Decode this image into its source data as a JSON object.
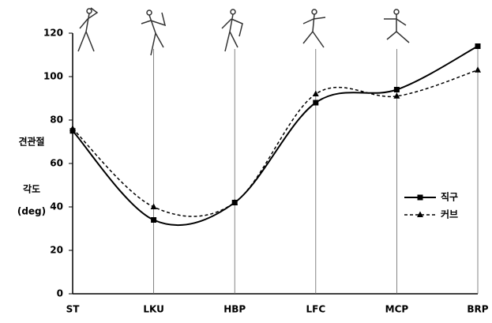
{
  "chart_data": {
    "type": "line",
    "y_label": [
      "견관절",
      "각도",
      "(deg)"
    ],
    "categories": [
      "ST",
      "LKU",
      "HBP",
      "LFC",
      "MCP",
      "BRP"
    ],
    "series": [
      {
        "name": "직구",
        "color": "#000000",
        "dash": "solid",
        "marker": "square",
        "values": [
          75,
          34,
          42,
          88,
          94,
          114
        ]
      },
      {
        "name": "커브",
        "color": "#000000",
        "dash": "dashed",
        "marker": "triangle",
        "values": [
          76,
          40,
          42,
          92,
          91,
          103
        ]
      }
    ],
    "ylim": [
      0,
      120
    ],
    "yticks": [
      0,
      20,
      40,
      60,
      80,
      100,
      120
    ],
    "legend": "right"
  }
}
